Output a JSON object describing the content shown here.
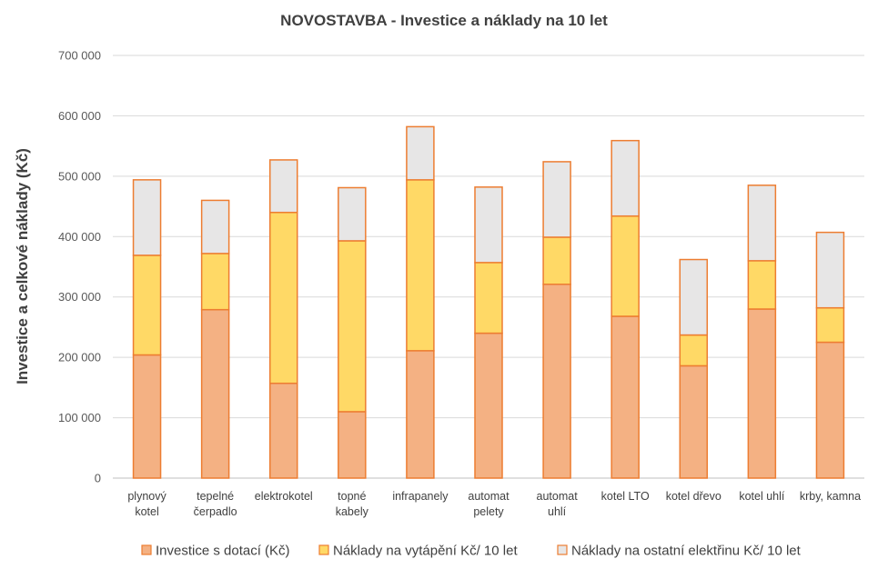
{
  "chart_data": {
    "type": "bar",
    "stacked": true,
    "title": "NOVOSTAVBA - Investice a náklady na 10 let",
    "xlabel": "",
    "ylabel": "Investice a celkové náklady (Kč)",
    "ylim": [
      0,
      700000
    ],
    "yticks": [
      0,
      100000,
      200000,
      300000,
      400000,
      500000,
      600000,
      700000
    ],
    "ytick_labels": [
      "0",
      "100 000",
      "200 000",
      "300 000",
      "400 000",
      "500 000",
      "600 000",
      "700 000"
    ],
    "grid": true,
    "legend_position": "bottom",
    "categories": [
      [
        "plynový",
        "kotel"
      ],
      [
        "tepelné",
        "čerpadlo"
      ],
      [
        "elektrokotel"
      ],
      [
        "topné",
        "kabely"
      ],
      [
        "infrapanely"
      ],
      [
        "automat",
        "pelety"
      ],
      [
        "automat",
        "uhlí"
      ],
      [
        "kotel LTO"
      ],
      [
        "kotel dřevo"
      ],
      [
        "kotel uhlí"
      ],
      [
        "krby, kamna"
      ]
    ],
    "series": [
      {
        "name": "Investice s dotací (Kč)",
        "color": "#F4B183",
        "values": [
          204000,
          279000,
          157000,
          110000,
          211000,
          240000,
          321000,
          268000,
          186000,
          280000,
          225000
        ]
      },
      {
        "name": "Náklady na vytápění Kč/ 10 let",
        "color": "#FFD966",
        "values": [
          165000,
          93000,
          283000,
          283000,
          283000,
          117000,
          78000,
          166000,
          51000,
          80000,
          57000
        ]
      },
      {
        "name": "Náklady na ostatní elektřinu Kč/ 10 let",
        "color": "#E7E6E6",
        "values": [
          125000,
          88000,
          87000,
          88000,
          88000,
          125000,
          125000,
          125000,
          125000,
          125000,
          125000
        ]
      }
    ],
    "colors": {
      "bar_stroke": "#ED7D31",
      "grid": "#D9D9D9",
      "axis": "#BFBFBF"
    }
  }
}
